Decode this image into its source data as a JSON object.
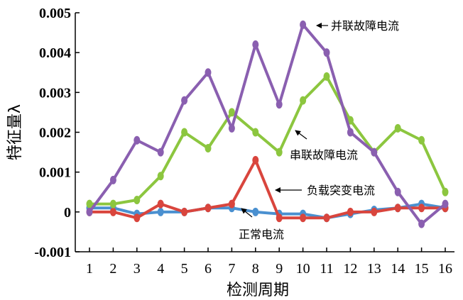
{
  "chart_data": {
    "type": "line",
    "xlabel": "检测周期",
    "ylabel": "特征量λ",
    "x": [
      1,
      2,
      3,
      4,
      5,
      6,
      7,
      8,
      9,
      10,
      11,
      12,
      13,
      14,
      15,
      16
    ],
    "ylim": [
      -0.001,
      0.005
    ],
    "yticks": [
      -0.001,
      0,
      0.001,
      0.002,
      0.003,
      0.004,
      0.005
    ],
    "ytick_labels": [
      "-0.001",
      "0",
      "0.001",
      "0.002",
      "0.003",
      "0.004",
      "0.005"
    ],
    "grid": false,
    "series": [
      {
        "id": "normal",
        "name": "正常电流",
        "color": "#4a90d0",
        "values": [
          0.0001,
          0.0001,
          -5e-05,
          0.0,
          0.0,
          0.0001,
          0.0001,
          0.0,
          -5e-05,
          -5e-05,
          -0.00015,
          -5e-05,
          5e-05,
          0.0001,
          0.0002,
          0.0001
        ]
      },
      {
        "id": "load",
        "name": "负载突变电流",
        "color": "#d9453d",
        "values": [
          0.0,
          0.0,
          -0.00015,
          0.0002,
          0.0,
          0.0001,
          0.0002,
          0.0013,
          -0.00015,
          -0.00015,
          -0.00015,
          0.0,
          0.0,
          0.0001,
          0.0001,
          0.0001
        ]
      },
      {
        "id": "series",
        "name": "串联故障电流",
        "color": "#8cc63f",
        "values": [
          0.0002,
          0.0002,
          0.0003,
          0.0009,
          0.002,
          0.0016,
          0.0025,
          0.002,
          0.0015,
          0.0028,
          0.0034,
          0.0023,
          0.0015,
          0.0021,
          0.0018,
          0.0005
        ]
      },
      {
        "id": "parallel",
        "name": "并联故障电流",
        "color": "#8a5fb0",
        "values": [
          0.0,
          0.0008,
          0.0018,
          0.0015,
          0.0028,
          0.0035,
          0.0021,
          0.0042,
          0.0027,
          0.0047,
          0.004,
          0.002,
          0.0015,
          0.0005,
          -0.0003,
          0.0002
        ]
      }
    ],
    "annotations": [
      {
        "series": "parallel",
        "text": "并联故障电流",
        "at": [
          10,
          0.0047
        ]
      },
      {
        "series": "series",
        "text": "串联故障电流",
        "at": [
          11.6,
          0.0013
        ]
      },
      {
        "series": "load",
        "text": "负载突变电流",
        "at": [
          9.2,
          0.00045
        ]
      },
      {
        "series": "normal",
        "text": "正常电流",
        "at": [
          9.0,
          -0.0002
        ]
      }
    ]
  }
}
